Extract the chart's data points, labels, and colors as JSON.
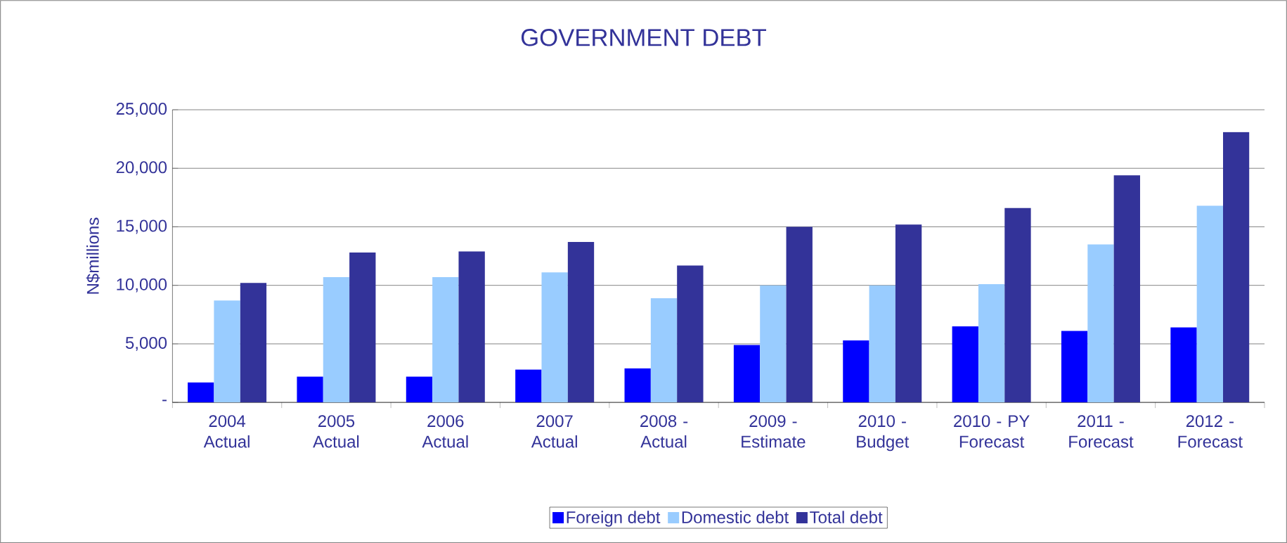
{
  "chart_data": {
    "type": "bar",
    "title": "GOVERNMENT DEBT",
    "ylabel": "N$millions",
    "categories": [
      "2004 Actual",
      "2005 Actual",
      "2006 Actual",
      "2007 Actual",
      "2008 - Actual",
      "2009 - Estimate",
      "2010 - Budget",
      "2010 - PY Forecast",
      "2011 - Forecast",
      "2012 - Forecast"
    ],
    "series": [
      {
        "name": "Foreign debt",
        "color": "#0000ff",
        "values": [
          1700,
          2200,
          2200,
          2800,
          2900,
          4900,
          5300,
          6500,
          6100,
          6400
        ]
      },
      {
        "name": "Domestic debt",
        "color": "#99ccff",
        "values": [
          8700,
          10700,
          10700,
          11100,
          8900,
          10000,
          10000,
          10100,
          13500,
          16800
        ]
      },
      {
        "name": "Total debt",
        "color": "#333399",
        "values": [
          10200,
          12800,
          12900,
          13700,
          11700,
          15000,
          15200,
          16600,
          19400,
          23100
        ]
      }
    ],
    "ylim": [
      0,
      25000
    ],
    "yticks": [
      {
        "value": 0,
        "label": "-"
      },
      {
        "value": 5000,
        "label": "5,000"
      },
      {
        "value": 10000,
        "label": "10,000"
      },
      {
        "value": 15000,
        "label": "15,000"
      },
      {
        "value": 20000,
        "label": "20,000"
      },
      {
        "value": 25000,
        "label": "25,000"
      }
    ],
    "grid": "y",
    "legend": "bottom"
  }
}
